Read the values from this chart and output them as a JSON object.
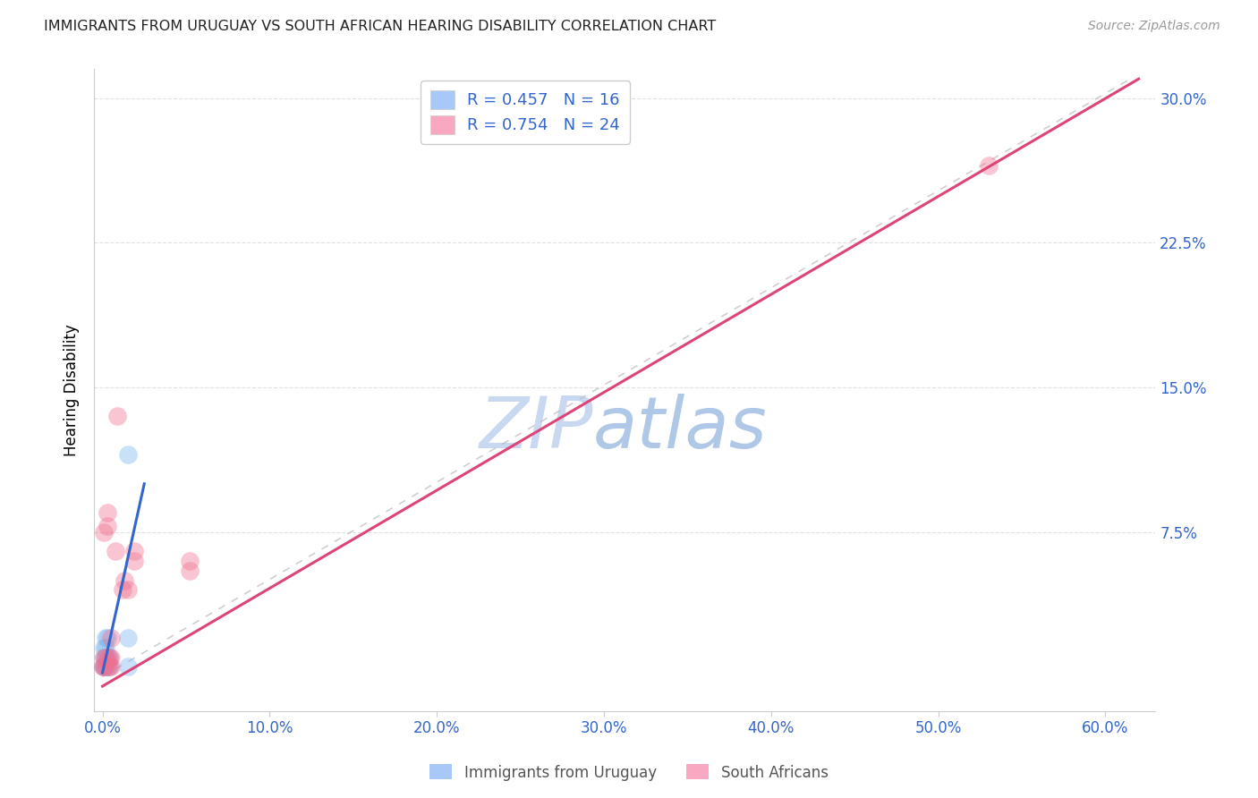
{
  "title": "IMMIGRANTS FROM URUGUAY VS SOUTH AFRICAN HEARING DISABILITY CORRELATION CHART",
  "source": "Source: ZipAtlas.com",
  "xlabel_ticks": [
    "0.0%",
    "10.0%",
    "20.0%",
    "30.0%",
    "40.0%",
    "50.0%",
    "60.0%"
  ],
  "xlabel_vals": [
    0.0,
    0.1,
    0.2,
    0.3,
    0.4,
    0.5,
    0.6
  ],
  "ylabel": "Hearing Disability",
  "ylabel_ticks": [
    "7.5%",
    "15.0%",
    "22.5%",
    "30.0%"
  ],
  "ylabel_vals": [
    0.075,
    0.15,
    0.225,
    0.3
  ],
  "xlim": [
    -0.005,
    0.63
  ],
  "ylim": [
    -0.018,
    0.315
  ],
  "legend_entries": [
    {
      "label": "R = 0.457   N = 16",
      "color": "#a8c8f8"
    },
    {
      "label": "R = 0.754   N = 24",
      "color": "#f8a8c0"
    }
  ],
  "blue_scatter_x": [
    0.0,
    0.001,
    0.001,
    0.001,
    0.002,
    0.002,
    0.002,
    0.002,
    0.003,
    0.003,
    0.003,
    0.004,
    0.004,
    0.015,
    0.015,
    0.015
  ],
  "blue_scatter_y": [
    0.005,
    0.005,
    0.01,
    0.015,
    0.005,
    0.01,
    0.015,
    0.02,
    0.005,
    0.01,
    0.02,
    0.005,
    0.01,
    0.005,
    0.115,
    0.02
  ],
  "pink_scatter_x": [
    0.0,
    0.001,
    0.001,
    0.001,
    0.002,
    0.002,
    0.003,
    0.003,
    0.003,
    0.004,
    0.004,
    0.005,
    0.005,
    0.005,
    0.008,
    0.009,
    0.012,
    0.013,
    0.015,
    0.019,
    0.019,
    0.052,
    0.052,
    0.53
  ],
  "pink_scatter_y": [
    0.005,
    0.005,
    0.01,
    0.075,
    0.005,
    0.01,
    0.008,
    0.078,
    0.085,
    0.005,
    0.01,
    0.005,
    0.01,
    0.02,
    0.065,
    0.135,
    0.045,
    0.05,
    0.045,
    0.06,
    0.065,
    0.055,
    0.06,
    0.265
  ],
  "blue_line_x": [
    0.0,
    0.025
  ],
  "blue_line_y": [
    0.002,
    0.1
  ],
  "pink_line_x": [
    0.0,
    0.62
  ],
  "pink_line_y": [
    -0.005,
    0.31
  ],
  "diag_line_x": [
    0.0,
    0.615
  ],
  "diag_line_y": [
    0.0,
    0.31
  ],
  "scatter_size": 220,
  "scatter_alpha": 0.4,
  "blue_color": "#7ab3f0",
  "pink_color": "#f07090",
  "blue_line_color": "#3366cc",
  "pink_line_color": "#dd4477",
  "diag_line_color": "#bbbbbb",
  "watermark_left": "ZIP",
  "watermark_right": "atlas",
  "watermark_color_left": "#c8d8f0",
  "watermark_color_right": "#b0c8e8",
  "grid_color": "#e0e0e0",
  "ylabel_color": "#3366cc",
  "xlabel_color": "#3366cc",
  "bottom_legend": [
    {
      "label": "Immigrants from Uruguay",
      "color": "#a8c8f8"
    },
    {
      "label": "South Africans",
      "color": "#f8a8c0"
    }
  ]
}
